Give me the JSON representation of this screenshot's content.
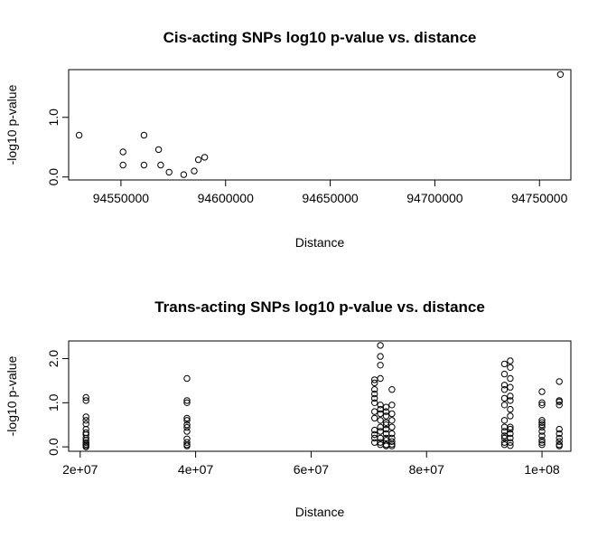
{
  "chart_data": [
    {
      "type": "scatter",
      "title": "Cis-acting SNPs log10 p-value vs. distance",
      "xlabel": "Distance",
      "ylabel": "-log10 p-value",
      "xlim": [
        94525000,
        94765000
      ],
      "ylim": [
        -0.05,
        1.8
      ],
      "xticks": [
        94550000,
        94600000,
        94650000,
        94700000,
        94750000
      ],
      "xtick_labels": [
        "94550000",
        "94600000",
        "94650000",
        "94700000",
        "94750000"
      ],
      "yticks": [
        0.0,
        1.0
      ],
      "ytick_labels": [
        "0.0",
        "1.0"
      ],
      "grid": false,
      "x": [
        94530000,
        94551000,
        94551000,
        94561000,
        94561000,
        94568000,
        94569000,
        94573000,
        94580000,
        94585000,
        94587000,
        94590000,
        94760000
      ],
      "y": [
        0.7,
        0.42,
        0.2,
        0.7,
        0.2,
        0.46,
        0.2,
        0.08,
        0.04,
        0.1,
        0.29,
        0.33,
        1.72
      ]
    },
    {
      "type": "scatter",
      "title": "Trans-acting SNPs log10 p-value vs. distance",
      "xlabel": "Distance",
      "ylabel": "-log10 p-value",
      "xlim": [
        18000000,
        105000000
      ],
      "ylim": [
        -0.1,
        2.4
      ],
      "xticks": [
        20000000,
        40000000,
        60000000,
        80000000,
        100000000
      ],
      "xtick_labels": [
        "2e+07",
        "4e+07",
        "6e+07",
        "8e+07",
        "1e+08"
      ],
      "yticks": [
        0.0,
        1.0,
        2.0
      ],
      "ytick_labels": [
        "0.0",
        "1.0",
        "2.0"
      ],
      "grid": false,
      "x": [
        21000000,
        21000000,
        21000000,
        21000000,
        21000000,
        21000000,
        21000000,
        21000000,
        21000000,
        21000000,
        21000000,
        21000000,
        21000000,
        21000000,
        38500000,
        38500000,
        38500000,
        38500000,
        38500000,
        38500000,
        38500000,
        38500000,
        38500000,
        38500000,
        38500000,
        38500000,
        71000000,
        71000000,
        71000000,
        71000000,
        71000000,
        71000000,
        71000000,
        71000000,
        71000000,
        71000000,
        71000000,
        71000000,
        72000000,
        72000000,
        72000000,
        72000000,
        72000000,
        72000000,
        72000000,
        72000000,
        72000000,
        72000000,
        72000000,
        72000000,
        72000000,
        73000000,
        73000000,
        73000000,
        73000000,
        73000000,
        73000000,
        73000000,
        73000000,
        73000000,
        73000000,
        73000000,
        74000000,
        74000000,
        74000000,
        74000000,
        74000000,
        74000000,
        74000000,
        74000000,
        74000000,
        74000000,
        93500000,
        93500000,
        93500000,
        93500000,
        93500000,
        93500000,
        93500000,
        93500000,
        93500000,
        93500000,
        93500000,
        93500000,
        93500000,
        94500000,
        94500000,
        94500000,
        94500000,
        94500000,
        94500000,
        94500000,
        94500000,
        94500000,
        94500000,
        94500000,
        94500000,
        94500000,
        94500000,
        100000000,
        100000000,
        100000000,
        100000000,
        100000000,
        100000000,
        100000000,
        100000000,
        100000000,
        100000000,
        100000000,
        100000000,
        103000000,
        103000000,
        103000000,
        103000000,
        103000000,
        103000000,
        103000000,
        103000000,
        103000000,
        103000000
      ],
      "y": [
        1.12,
        1.05,
        0.68,
        0.6,
        0.52,
        0.4,
        0.32,
        0.28,
        0.2,
        0.15,
        0.1,
        0.06,
        0.03,
        0.0,
        1.55,
        1.05,
        1.0,
        0.65,
        0.6,
        0.5,
        0.44,
        0.35,
        0.18,
        0.1,
        0.05,
        0.02,
        1.52,
        1.45,
        1.3,
        1.2,
        1.1,
        1.0,
        0.8,
        0.65,
        0.38,
        0.28,
        0.2,
        0.1,
        2.3,
        2.05,
        1.85,
        1.55,
        0.95,
        0.85,
        0.75,
        0.6,
        0.45,
        0.35,
        0.2,
        0.1,
        0.05,
        0.9,
        0.8,
        0.7,
        0.55,
        0.5,
        0.4,
        0.3,
        0.2,
        0.15,
        0.05,
        0.02,
        1.3,
        0.95,
        0.75,
        0.6,
        0.45,
        0.3,
        0.2,
        0.12,
        0.06,
        0.02,
        1.88,
        1.65,
        1.4,
        1.3,
        1.1,
        0.95,
        0.6,
        0.45,
        0.35,
        0.25,
        0.2,
        0.1,
        0.05,
        1.95,
        1.8,
        1.55,
        1.35,
        1.15,
        1.05,
        0.85,
        0.7,
        0.45,
        0.4,
        0.3,
        0.2,
        0.1,
        0.03,
        1.25,
        1.0,
        0.95,
        0.6,
        0.55,
        0.5,
        0.45,
        0.35,
        0.25,
        0.15,
        0.1,
        0.05,
        1.48,
        1.05,
        1.02,
        0.95,
        0.4,
        0.3,
        0.2,
        0.12,
        0.05,
        0.02
      ]
    }
  ]
}
